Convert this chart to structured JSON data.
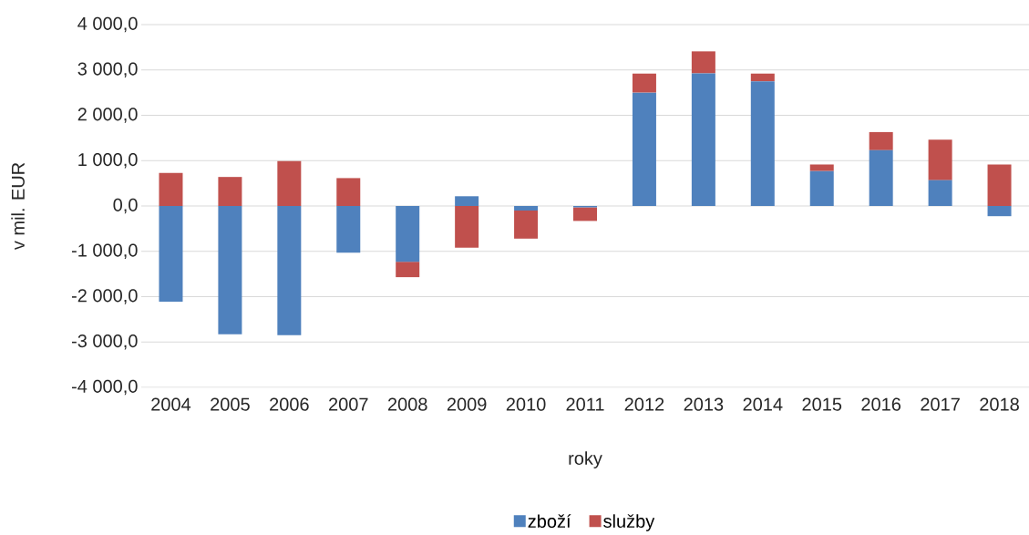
{
  "chart_data": {
    "type": "bar",
    "stacked": true,
    "xlabel": "roky",
    "ylabel": "v mil. EUR",
    "categories": [
      "2004",
      "2005",
      "2006",
      "2007",
      "2008",
      "2009",
      "2010",
      "2011",
      "2012",
      "2013",
      "2014",
      "2015",
      "2016",
      "2017",
      "2018"
    ],
    "series": [
      {
        "name": "zboží",
        "color": "#4f81bd",
        "values": [
          -2110,
          -2830,
          -2850,
          -1030,
          -1230,
          215,
          -100,
          -30,
          2500,
          2925,
          2750,
          770,
          1230,
          570,
          -225
        ]
      },
      {
        "name": "služby",
        "color": "#c0504d",
        "values": [
          730,
          640,
          990,
          615,
          -340,
          -920,
          -620,
          -300,
          420,
          485,
          170,
          145,
          400,
          890,
          915
        ]
      }
    ],
    "ylim": [
      -4000,
      4000
    ],
    "yticks": [
      {
        "value": -4000,
        "label": "-4 000,0"
      },
      {
        "value": -3000,
        "label": "-3 000,0"
      },
      {
        "value": -2000,
        "label": "-2 000,0"
      },
      {
        "value": -1000,
        "label": "-1 000,0"
      },
      {
        "value": 0,
        "label": "0,0"
      },
      {
        "value": 1000,
        "label": "1 000,0"
      },
      {
        "value": 2000,
        "label": "2 000,0"
      },
      {
        "value": 3000,
        "label": "3 000,0"
      },
      {
        "value": 4000,
        "label": "4 000,0"
      }
    ],
    "grid": "y",
    "legend": "bottom"
  }
}
